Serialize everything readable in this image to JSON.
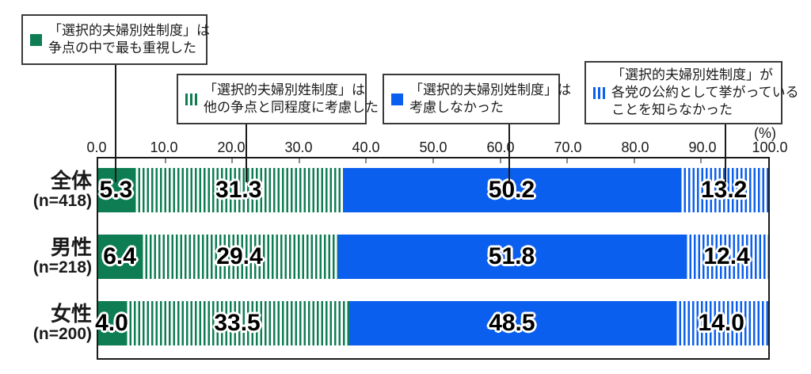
{
  "colors": {
    "green": "#0E7D53",
    "blue": "#0B5FEE"
  },
  "unit_label": "(%)",
  "legend": {
    "boxes": [
      {
        "icon": "solid-green-swatch-icon",
        "lines": [
          "「選択的夫婦別姓制度」は",
          "争点の中で最も重視した"
        ]
      },
      {
        "icon": "striped-green-swatch-icon",
        "lines": [
          "「選択的夫婦別姓制度」は",
          "他の争点と同程度に考慮した"
        ]
      },
      {
        "icon": "solid-blue-swatch-icon",
        "lines": [
          "「選択的夫婦別姓制度」は",
          "考慮しなかった"
        ]
      },
      {
        "icon": "striped-blue-swatch-icon",
        "lines": [
          "「選択的夫婦別姓制度」が",
          "各党の公約として挙がっている",
          "ことを知らなかった"
        ]
      }
    ]
  },
  "chart_data": {
    "type": "bar",
    "orientation": "horizontal",
    "stacked": true,
    "xlim": [
      0,
      100
    ],
    "x_ticks": [
      "0.0",
      "10.0",
      "20.0",
      "30.0",
      "40.0",
      "50.0",
      "60.0",
      "70.0",
      "80.0",
      "90.0",
      "100.0"
    ],
    "unit": "(%)",
    "grid": false,
    "legend_position": "top-callouts",
    "categories": [
      {
        "label": "全体",
        "n": "(n=418)"
      },
      {
        "label": "男性",
        "n": "(n=218)"
      },
      {
        "label": "女性",
        "n": "(n=200)"
      }
    ],
    "series": [
      {
        "name": "「選択的夫婦別姓制度」は争点の中で最も重視した",
        "style": "solid-green",
        "values": [
          "5.3",
          "6.4",
          "4.0"
        ]
      },
      {
        "name": "「選択的夫婦別姓制度」は他の争点と同程度に考慮した",
        "style": "striped-green",
        "values": [
          "31.3",
          "29.4",
          "33.5"
        ]
      },
      {
        "name": "「選択的夫婦別姓制度」は考慮しなかった",
        "style": "solid-blue",
        "values": [
          "50.2",
          "51.8",
          "48.5"
        ]
      },
      {
        "name": "「選択的夫婦別姓制度」が各党の公約として挙がっていることを知らなかった",
        "style": "striped-blue",
        "values": [
          "13.2",
          "12.4",
          "14.0"
        ]
      }
    ]
  }
}
